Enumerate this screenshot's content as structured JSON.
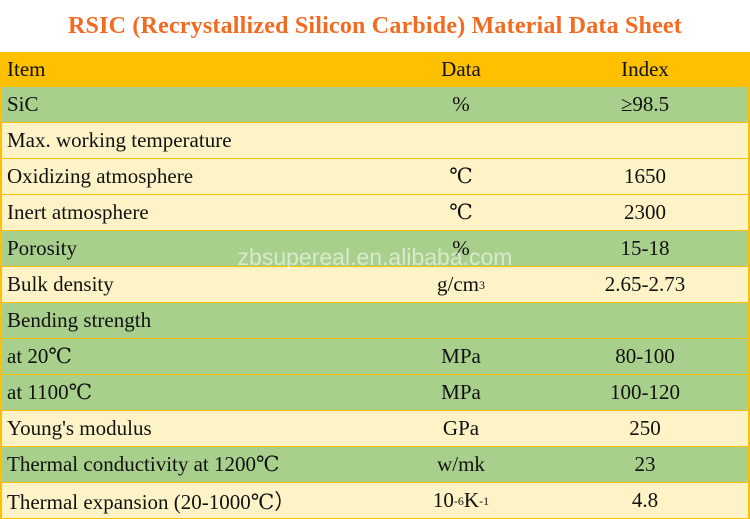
{
  "title": "RSIC (Recrystallized Silicon Carbide) Material Data Sheet",
  "header": {
    "item": "Item",
    "data": "Data",
    "index": "Index"
  },
  "rows": [
    {
      "item": "SiC",
      "data": "%",
      "index": "≥98.5",
      "color": "green"
    },
    {
      "item": "Max. working temperature",
      "data": "",
      "index": "",
      "color": "cream"
    },
    {
      "item": "Oxidizing atmosphere",
      "data": "℃",
      "index": "1650",
      "color": "cream"
    },
    {
      "item": "Inert atmosphere",
      "data": "℃",
      "index": "2300",
      "color": "cream"
    },
    {
      "item": "Porosity",
      "data": "%",
      "index": "15-18",
      "color": "green"
    },
    {
      "item": "Bulk density",
      "data_base": "g/cm",
      "data_sup": "3",
      "index": "2.65-2.73",
      "color": "cream"
    },
    {
      "item": "Bending strength",
      "data": "",
      "index": "",
      "color": "green"
    },
    {
      "item": "at 20℃",
      "data": "MPa",
      "index": "80-100",
      "color": "green"
    },
    {
      "item": "at 1100℃",
      "data": "MPa",
      "index": "100-120",
      "color": "green"
    },
    {
      "item": "Young's modulus",
      "data": "GPa",
      "index": "250",
      "color": "cream"
    },
    {
      "item": "Thermal conductivity at 1200℃",
      "data": "w/mk",
      "index": "23",
      "color": "green"
    },
    {
      "item": "Thermal expansion (20-1000℃）",
      "data_a": "10",
      "data_sup1": "-6",
      "data_b": "K",
      "data_sup2": "-1",
      "index": "4.8",
      "color": "cream"
    }
  ],
  "watermark": "zbsupereal.en.alibaba.com",
  "colors": {
    "title": "#f26b21",
    "header_bg": "#ffc000",
    "green_row": "#a8d08c",
    "cream_row": "#fef3c6"
  }
}
